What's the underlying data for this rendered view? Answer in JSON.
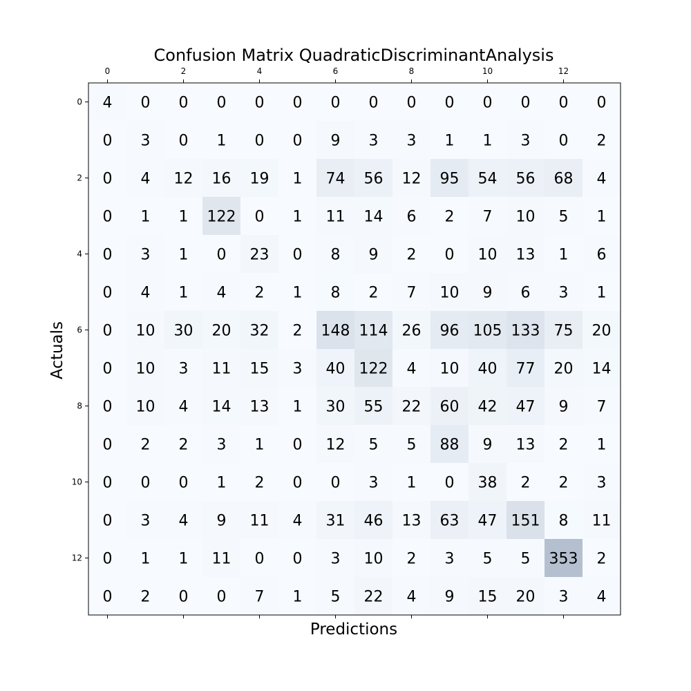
{
  "chart_data": {
    "type": "heatmap",
    "title": "Confusion Matrix QuadraticDiscriminantAnalysis",
    "xlabel": "Predictions",
    "ylabel": "Actuals",
    "x_tick_labels": [
      "0",
      "2",
      "4",
      "6",
      "8",
      "10",
      "12"
    ],
    "y_tick_labels": [
      "0",
      "2",
      "4",
      "6",
      "8",
      "10",
      "12"
    ],
    "tick_values": [
      0,
      2,
      4,
      6,
      8,
      10,
      12
    ],
    "size": 14,
    "colormap": {
      "low": "#f7fbff",
      "high": "#b4bfcf"
    },
    "value_range": [
      0,
      353
    ],
    "matrix": [
      [
        4,
        0,
        0,
        0,
        0,
        0,
        0,
        0,
        0,
        0,
        0,
        0,
        0,
        0
      ],
      [
        0,
        3,
        0,
        1,
        0,
        0,
        9,
        3,
        3,
        1,
        1,
        3,
        0,
        2
      ],
      [
        0,
        4,
        12,
        16,
        19,
        1,
        74,
        56,
        12,
        95,
        54,
        56,
        68,
        4
      ],
      [
        0,
        1,
        1,
        122,
        0,
        1,
        11,
        14,
        6,
        2,
        7,
        10,
        5,
        1
      ],
      [
        0,
        3,
        1,
        0,
        23,
        0,
        8,
        9,
        2,
        0,
        10,
        13,
        1,
        6
      ],
      [
        0,
        4,
        1,
        4,
        2,
        1,
        8,
        2,
        7,
        10,
        9,
        6,
        3,
        1
      ],
      [
        0,
        10,
        30,
        20,
        32,
        2,
        148,
        114,
        26,
        96,
        105,
        133,
        75,
        20
      ],
      [
        0,
        10,
        3,
        11,
        15,
        3,
        40,
        122,
        4,
        10,
        40,
        77,
        20,
        14
      ],
      [
        0,
        10,
        4,
        14,
        13,
        1,
        30,
        55,
        22,
        60,
        42,
        47,
        9,
        7
      ],
      [
        0,
        2,
        2,
        3,
        1,
        0,
        12,
        5,
        5,
        88,
        9,
        13,
        2,
        1
      ],
      [
        0,
        0,
        0,
        1,
        2,
        0,
        0,
        3,
        1,
        0,
        38,
        2,
        2,
        3
      ],
      [
        0,
        3,
        4,
        9,
        11,
        4,
        31,
        46,
        13,
        63,
        47,
        151,
        8,
        11
      ],
      [
        0,
        1,
        1,
        11,
        0,
        0,
        3,
        10,
        2,
        3,
        5,
        5,
        353,
        2
      ],
      [
        0,
        2,
        0,
        0,
        7,
        1,
        5,
        22,
        4,
        9,
        15,
        20,
        3,
        4
      ]
    ]
  }
}
